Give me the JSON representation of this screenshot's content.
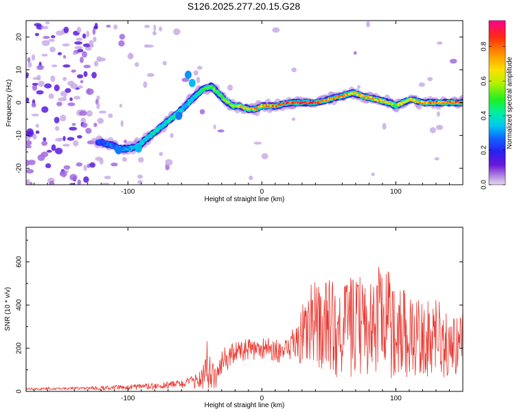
{
  "title": "S126.2025.277.20.15.G28",
  "chart_data": [
    {
      "type": "heatmap",
      "xlabel": "Height of straight line (km)",
      "ylabel": "Frequency (Hz)",
      "xlim": [
        -176,
        150
      ],
      "ylim": [
        -25,
        25
      ],
      "x_ticks": [
        -100,
        0,
        100
      ],
      "y_ticks": [
        -20,
        -10,
        0,
        10,
        20
      ],
      "colorbar": {
        "label": "Normalized spectral amplitude",
        "range": [
          0,
          0.95
        ],
        "ticks": [
          "0.0",
          "0.2",
          "0.4",
          "0.6",
          "0.8"
        ],
        "tick_values": [
          0.0,
          0.2,
          0.4,
          0.6,
          0.8
        ]
      },
      "ridge": {
        "x": [
          -120,
          -112,
          -105,
          -98,
          -92,
          -86,
          -80,
          -74,
          -68,
          -62,
          -57,
          -50,
          -44,
          -38,
          -33,
          -28,
          -22,
          -16,
          -10,
          -5,
          0,
          10,
          20,
          30,
          40,
          50,
          60,
          68,
          75,
          85,
          95,
          100,
          110,
          120,
          130,
          140,
          148
        ],
        "y": [
          -12,
          -13,
          -14,
          -14,
          -13,
          -11,
          -9,
          -7,
          -5,
          -3,
          -1,
          2,
          4,
          5,
          3,
          1,
          -1,
          -1,
          -2,
          -2,
          -1,
          -1,
          0,
          0,
          0,
          1,
          2,
          3,
          2,
          1,
          0,
          -1,
          1,
          0,
          0,
          0,
          0
        ],
        "amplitude": [
          0.25,
          0.3,
          0.3,
          0.35,
          0.4,
          0.4,
          0.45,
          0.4,
          0.45,
          0.5,
          0.35,
          0.4,
          0.5,
          0.55,
          0.55,
          0.6,
          0.6,
          0.75,
          0.7,
          0.8,
          0.75,
          0.85,
          0.9,
          0.9,
          0.9,
          0.8,
          0.8,
          0.75,
          0.75,
          0.8,
          0.7,
          0.6,
          0.7,
          0.8,
          0.85,
          0.85,
          0.85
        ]
      }
    },
    {
      "type": "line",
      "xlabel": "Height of straight line (km)",
      "ylabel": "SNR (10 * v/v)",
      "xlim": [
        -176,
        150
      ],
      "ylim": [
        0,
        760
      ],
      "x_ticks": [
        -100,
        0,
        100
      ],
      "y_ticks": [
        0,
        200,
        400,
        600
      ],
      "color": "#e8342c",
      "envelope": {
        "x": [
          -176,
          -150,
          -120,
          -100,
          -80,
          -60,
          -50,
          -45,
          -40,
          -35,
          -30,
          -25,
          -20,
          -10,
          0,
          10,
          20,
          25,
          30,
          40,
          50,
          60,
          70,
          80,
          90,
          100,
          110,
          120,
          130,
          140,
          150
        ],
        "base": [
          12,
          12,
          15,
          18,
          25,
          35,
          45,
          70,
          90,
          60,
          120,
          160,
          180,
          190,
          200,
          190,
          180,
          230,
          260,
          300,
          300,
          290,
          300,
          310,
          320,
          300,
          260,
          240,
          220,
          210,
          230
        ],
        "amp": [
          5,
          5,
          10,
          12,
          15,
          20,
          30,
          60,
          110,
          50,
          70,
          60,
          50,
          55,
          50,
          55,
          60,
          120,
          150,
          180,
          220,
          240,
          230,
          250,
          280,
          230,
          200,
          170,
          160,
          150,
          130
        ]
      }
    }
  ]
}
